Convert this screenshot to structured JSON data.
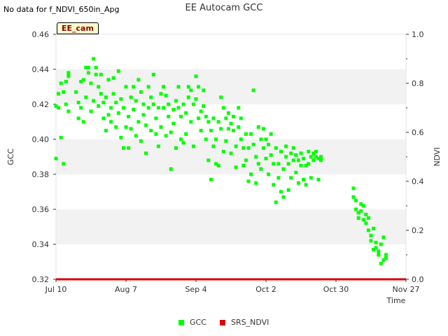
{
  "header": {
    "nodata_text": "No data for f_NDVI_650in_Apg",
    "title": "EE Autocam GCC"
  },
  "badge": {
    "label": "EE_cam"
  },
  "legend": [
    {
      "name": "GCC",
      "color": "#00ff00"
    },
    {
      "name": "SRS_NDVI",
      "color": "#dd0000"
    }
  ],
  "chart_data": {
    "type": "scatter",
    "title": "EE Autocam GCC",
    "xlabel": "Time",
    "ylabel_left": "GCC",
    "ylabel_right": "NDVI",
    "x_range": [
      "2023-07-10",
      "2023-11-27"
    ],
    "y_left_range": [
      0.32,
      0.46
    ],
    "y_right_range": [
      0.0,
      1.0
    ],
    "x_ticks": [
      {
        "label": "Jul 10",
        "date": "2023-07-10"
      },
      {
        "label": "Aug 7",
        "date": "2023-08-07"
      },
      {
        "label": "Sep 4",
        "date": "2023-09-04"
      },
      {
        "label": "Oct 2",
        "date": "2023-10-02"
      },
      {
        "label": "Oct 30",
        "date": "2023-10-30"
      },
      {
        "label": "Nov 27",
        "date": "2023-11-27"
      }
    ],
    "y_left_ticks": [
      "0.32",
      "0.34",
      "0.36",
      "0.38",
      "0.40",
      "0.42",
      "0.44",
      "0.46"
    ],
    "y_right_ticks": [
      "0.0",
      "0.2",
      "0.4",
      "0.6",
      "0.8",
      "1.0"
    ],
    "grid": "horizontal bands",
    "legend_position": "bottom",
    "series": [
      {
        "name": "GCC",
        "color": "#00ff00",
        "points": [
          [
            "2023-07-10",
            0.419
          ],
          [
            "2023-07-10",
            0.389
          ],
          [
            "2023-07-11",
            0.418
          ],
          [
            "2023-07-11",
            0.426
          ],
          [
            "2023-07-12",
            0.432
          ],
          [
            "2023-07-12",
            0.401
          ],
          [
            "2023-07-13",
            0.386
          ],
          [
            "2023-07-13",
            0.427
          ],
          [
            "2023-07-14",
            0.433
          ],
          [
            "2023-07-14",
            0.42
          ],
          [
            "2023-07-15",
            0.436
          ],
          [
            "2023-07-15",
            0.438
          ],
          [
            "2023-07-15",
            0.416
          ],
          [
            "2023-07-18",
            0.427
          ],
          [
            "2023-07-19",
            0.421
          ],
          [
            "2023-07-19",
            0.412
          ],
          [
            "2023-07-20",
            0.433
          ],
          [
            "2023-07-20",
            0.418
          ],
          [
            "2023-07-21",
            0.41
          ],
          [
            "2023-07-21",
            0.434
          ],
          [
            "2023-07-22",
            0.441
          ],
          [
            "2023-07-22",
            0.424
          ],
          [
            "2023-07-23",
            0.438
          ],
          [
            "2023-07-23",
            0.441
          ],
          [
            "2023-07-24",
            0.432
          ],
          [
            "2023-07-24",
            0.416
          ],
          [
            "2023-07-25",
            0.422
          ],
          [
            "2023-07-25",
            0.446
          ],
          [
            "2023-07-26",
            0.441
          ],
          [
            "2023-07-26",
            0.437
          ],
          [
            "2023-07-27",
            0.43
          ],
          [
            "2023-07-27",
            0.419
          ],
          [
            "2023-07-28",
            0.437
          ],
          [
            "2023-07-28",
            0.426
          ],
          [
            "2023-07-29",
            0.412
          ],
          [
            "2023-07-29",
            0.421
          ],
          [
            "2023-07-30",
            0.405
          ],
          [
            "2023-07-30",
            0.424
          ],
          [
            "2023-07-31",
            0.414
          ],
          [
            "2023-07-31",
            0.434
          ],
          [
            "2023-08-01",
            0.418
          ],
          [
            "2023-08-01",
            0.41
          ],
          [
            "2023-08-02",
            0.435
          ],
          [
            "2023-08-02",
            0.426
          ],
          [
            "2023-08-03",
            0.421
          ],
          [
            "2023-08-03",
            0.407
          ],
          [
            "2023-08-04",
            0.439
          ],
          [
            "2023-08-04",
            0.415
          ],
          [
            "2023-08-05",
            0.401
          ],
          [
            "2023-08-05",
            0.423
          ],
          [
            "2023-08-06",
            0.395
          ],
          [
            "2023-08-06",
            0.418
          ],
          [
            "2023-08-07",
            0.407
          ],
          [
            "2023-08-07",
            0.43
          ],
          [
            "2023-08-08",
            0.413
          ],
          [
            "2023-08-08",
            0.395
          ],
          [
            "2023-08-09",
            0.424
          ],
          [
            "2023-08-09",
            0.406
          ],
          [
            "2023-08-10",
            0.43
          ],
          [
            "2023-08-10",
            0.417
          ],
          [
            "2023-08-11",
            0.402
          ],
          [
            "2023-08-11",
            0.422
          ],
          [
            "2023-08-12",
            0.434
          ],
          [
            "2023-08-12",
            0.41
          ],
          [
            "2023-08-13",
            0.427
          ],
          [
            "2023-08-13",
            0.399
          ],
          [
            "2023-08-14",
            0.414
          ],
          [
            "2023-08-14",
            0.42
          ],
          [
            "2023-08-15",
            0.392
          ],
          [
            "2023-08-15",
            0.408
          ],
          [
            "2023-08-16",
            0.43
          ],
          [
            "2023-08-16",
            0.418
          ],
          [
            "2023-08-17",
            0.405
          ],
          [
            "2023-08-17",
            0.424
          ],
          [
            "2023-08-18",
            0.437
          ],
          [
            "2023-08-18",
            0.42
          ],
          [
            "2023-08-19",
            0.403
          ],
          [
            "2023-08-19",
            0.412
          ],
          [
            "2023-08-20",
            0.396
          ],
          [
            "2023-08-20",
            0.418
          ],
          [
            "2023-08-21",
            0.426
          ],
          [
            "2023-08-21",
            0.407
          ],
          [
            "2023-08-22",
            0.43
          ],
          [
            "2023-08-22",
            0.418
          ],
          [
            "2023-08-23",
            0.425
          ],
          [
            "2023-08-23",
            0.402
          ],
          [
            "2023-08-24",
            0.413
          ],
          [
            "2023-08-24",
            0.42
          ],
          [
            "2023-08-25",
            0.383
          ],
          [
            "2023-08-25",
            0.404
          ],
          [
            "2023-08-26",
            0.417
          ],
          [
            "2023-08-26",
            0.409
          ],
          [
            "2023-08-27",
            0.395
          ],
          [
            "2023-08-27",
            0.422
          ],
          [
            "2023-08-28",
            0.43
          ],
          [
            "2023-08-28",
            0.418
          ],
          [
            "2023-08-29",
            0.4
          ],
          [
            "2023-08-29",
            0.413
          ],
          [
            "2023-08-30",
            0.398
          ],
          [
            "2023-08-30",
            0.42
          ],
          [
            "2023-08-31",
            0.415
          ],
          [
            "2023-08-31",
            0.403
          ],
          [
            "2023-09-01",
            0.424
          ],
          [
            "2023-09-01",
            0.43
          ],
          [
            "2023-09-02",
            0.41
          ],
          [
            "2023-09-02",
            0.428
          ],
          [
            "2023-09-03",
            0.396
          ],
          [
            "2023-09-03",
            0.42
          ],
          [
            "2023-09-04",
            0.436
          ],
          [
            "2023-09-04",
            0.423
          ],
          [
            "2023-09-05",
            0.412
          ],
          [
            "2023-09-05",
            0.43
          ],
          [
            "2023-09-06",
            0.416
          ],
          [
            "2023-09-06",
            0.405
          ],
          [
            "2023-09-07",
            0.428
          ],
          [
            "2023-09-07",
            0.419
          ],
          [
            "2023-09-08",
            0.4
          ],
          [
            "2023-09-08",
            0.413
          ],
          [
            "2023-09-09",
            0.388
          ],
          [
            "2023-09-09",
            0.41
          ],
          [
            "2023-09-10",
            0.377
          ],
          [
            "2023-09-10",
            0.405
          ],
          [
            "2023-09-11",
            0.396
          ],
          [
            "2023-09-11",
            0.412
          ],
          [
            "2023-09-12",
            0.386
          ],
          [
            "2023-09-12",
            0.4
          ],
          [
            "2023-09-13",
            0.385
          ],
          [
            "2023-09-13",
            0.41
          ],
          [
            "2023-09-14",
            0.424
          ],
          [
            "2023-09-14",
            0.406
          ],
          [
            "2023-09-15",
            0.393
          ],
          [
            "2023-09-15",
            0.418
          ],
          [
            "2023-09-16",
            0.399
          ],
          [
            "2023-09-16",
            0.412
          ],
          [
            "2023-09-17",
            0.415
          ],
          [
            "2023-09-17",
            0.406
          ],
          [
            "2023-09-18",
            0.392
          ],
          [
            "2023-09-18",
            0.409
          ],
          [
            "2023-09-19",
            0.413
          ],
          [
            "2023-09-19",
            0.405
          ],
          [
            "2023-09-20",
            0.384
          ],
          [
            "2023-09-20",
            0.396
          ],
          [
            "2023-09-21",
            0.407
          ],
          [
            "2023-09-21",
            0.418
          ],
          [
            "2023-09-22",
            0.4
          ],
          [
            "2023-09-22",
            0.412
          ],
          [
            "2023-09-23",
            0.385
          ],
          [
            "2023-09-23",
            0.395
          ],
          [
            "2023-09-24",
            0.388
          ],
          [
            "2023-09-24",
            0.403
          ],
          [
            "2023-09-25",
            0.376
          ],
          [
            "2023-09-25",
            0.395
          ],
          [
            "2023-09-26",
            0.403
          ],
          [
            "2023-09-26",
            0.38
          ],
          [
            "2023-09-27",
            0.428
          ],
          [
            "2023-09-27",
            0.397
          ],
          [
            "2023-09-28",
            0.375
          ],
          [
            "2023-09-28",
            0.39
          ],
          [
            "2023-09-29",
            0.407
          ],
          [
            "2023-09-29",
            0.386
          ],
          [
            "2023-09-30",
            0.4
          ],
          [
            "2023-09-30",
            0.383
          ],
          [
            "2023-10-01",
            0.395
          ],
          [
            "2023-10-01",
            0.406
          ],
          [
            "2023-10-02",
            0.389
          ],
          [
            "2023-10-02",
            0.4
          ],
          [
            "2023-10-03",
            0.38
          ],
          [
            "2023-10-03",
            0.397
          ],
          [
            "2023-10-04",
            0.391
          ],
          [
            "2023-10-04",
            0.403
          ],
          [
            "2023-10-05",
            0.374
          ],
          [
            "2023-10-05",
            0.386
          ],
          [
            "2023-10-06",
            0.364
          ],
          [
            "2023-10-06",
            0.395
          ],
          [
            "2023-10-07",
            0.378
          ],
          [
            "2023-10-07",
            0.386
          ],
          [
            "2023-10-08",
            0.37
          ],
          [
            "2023-10-08",
            0.393
          ],
          [
            "2023-10-09",
            0.367
          ],
          [
            "2023-10-09",
            0.383
          ],
          [
            "2023-10-10",
            0.39
          ],
          [
            "2023-10-10",
            0.396
          ],
          [
            "2023-10-11",
            0.371
          ],
          [
            "2023-10-11",
            0.386
          ],
          [
            "2023-10-12",
            0.392
          ],
          [
            "2023-10-12",
            0.378
          ],
          [
            "2023-10-13",
            0.388
          ],
          [
            "2023-10-13",
            0.395
          ],
          [
            "2023-10-14",
            0.381
          ],
          [
            "2023-10-14",
            0.391
          ],
          [
            "2023-10-15",
            0.375
          ],
          [
            "2023-10-15",
            0.388
          ],
          [
            "2023-10-16",
            0.385
          ],
          [
            "2023-10-16",
            0.392
          ],
          [
            "2023-10-17",
            0.377
          ],
          [
            "2023-10-17",
            0.389
          ],
          [
            "2023-10-18",
            0.374
          ],
          [
            "2023-10-18",
            0.385
          ],
          [
            "2023-10-19",
            0.386
          ],
          [
            "2023-10-19",
            0.393
          ],
          [
            "2023-10-20",
            0.378
          ],
          [
            "2023-10-20",
            0.39
          ],
          [
            "2023-10-21",
            0.388
          ],
          [
            "2023-10-21",
            0.392
          ],
          [
            "2023-10-22",
            0.39
          ],
          [
            "2023-10-22",
            0.393
          ],
          [
            "2023-10-23",
            0.377
          ],
          [
            "2023-10-23",
            0.389
          ],
          [
            "2023-10-24",
            0.39
          ],
          [
            "2023-10-24",
            0.388
          ],
          [
            "2023-11-06",
            0.372
          ],
          [
            "2023-11-06",
            0.367
          ],
          [
            "2023-11-07",
            0.36
          ],
          [
            "2023-11-07",
            0.365
          ],
          [
            "2023-11-08",
            0.358
          ],
          [
            "2023-11-08",
            0.355
          ],
          [
            "2023-11-09",
            0.363
          ],
          [
            "2023-11-09",
            0.359
          ],
          [
            "2023-11-10",
            0.354
          ],
          [
            "2023-11-10",
            0.362
          ],
          [
            "2023-11-11",
            0.357
          ],
          [
            "2023-11-11",
            0.352
          ],
          [
            "2023-11-12",
            0.355
          ],
          [
            "2023-11-12",
            0.348
          ],
          [
            "2023-11-13",
            0.345
          ],
          [
            "2023-11-13",
            0.342
          ],
          [
            "2023-11-14",
            0.337
          ],
          [
            "2023-11-14",
            0.349
          ],
          [
            "2023-11-15",
            0.341
          ],
          [
            "2023-11-15",
            0.338
          ],
          [
            "2023-11-16",
            0.336
          ],
          [
            "2023-11-16",
            0.334
          ],
          [
            "2023-11-17",
            0.329
          ],
          [
            "2023-11-17",
            0.34
          ],
          [
            "2023-11-18",
            0.344
          ],
          [
            "2023-11-18",
            0.331
          ],
          [
            "2023-11-19",
            0.334
          ],
          [
            "2023-11-19",
            0.332
          ]
        ]
      },
      {
        "name": "SRS_NDVI",
        "color": "#dd0000",
        "axis": "right",
        "constant_value": 0.0
      }
    ]
  }
}
